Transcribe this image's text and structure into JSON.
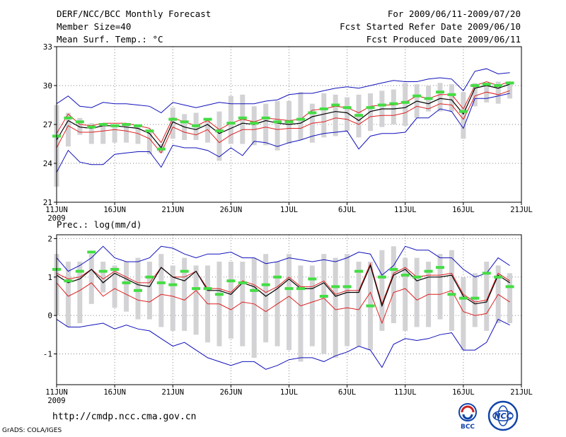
{
  "header": {
    "title": "DERF/NCC/BCC Monthly Forecast",
    "member_size": "Member Size=40",
    "variable": "Mean Surf. Temp.: °C",
    "period": "For 2009/06/11-2009/07/20",
    "start_ref": "Fcst Started Refer Date 2009/06/10",
    "produced": "Fcst Produced Date 2009/06/11"
  },
  "footer": {
    "url": "http://cmdp.ncc.cma.gov.cn",
    "credit": "GrADS: COLA/IGES"
  },
  "logos": {
    "bcc_text": "BCC",
    "ncc_text": "NCC"
  },
  "colors": {
    "box": "#d3d3d6",
    "mean": "#000000",
    "band": "#dd2020",
    "envelope": "#1010bb",
    "obs": "#44dd44",
    "grid": "#888888"
  },
  "chart_data": [
    {
      "type": "box-ensemble",
      "title": "Mean Surf. Temp.: °C",
      "xlabel": "",
      "ylabel": "",
      "ylim": [
        21,
        33
      ],
      "yticks": [
        21,
        24,
        27,
        30,
        33
      ],
      "xlim": [
        1,
        41
      ],
      "xticks": [
        {
          "x": 1,
          "label": "11JUN",
          "sub": "2009"
        },
        {
          "x": 6,
          "label": "16JUN"
        },
        {
          "x": 11,
          "label": "21JUN"
        },
        {
          "x": 16,
          "label": "26JUN"
        },
        {
          "x": 21,
          "label": "1JUL"
        },
        {
          "x": 26,
          "label": "6JUL"
        },
        {
          "x": 31,
          "label": "11JUL"
        },
        {
          "x": 36,
          "label": "16JUL"
        },
        {
          "x": 41,
          "label": "21JUL"
        }
      ],
      "days": [
        1,
        2,
        3,
        4,
        5,
        6,
        7,
        8,
        9,
        10,
        11,
        12,
        13,
        14,
        15,
        16,
        17,
        18,
        19,
        20,
        21,
        22,
        23,
        24,
        25,
        26,
        27,
        28,
        29,
        30,
        31,
        32,
        33,
        34,
        35,
        36,
        37,
        38,
        39,
        40
      ],
      "box_low": [
        22.2,
        25.3,
        26.2,
        25.5,
        25.5,
        25.6,
        25.6,
        25.5,
        24.7,
        24.8,
        25.9,
        25.8,
        25.8,
        25.6,
        24.2,
        25.5,
        25.5,
        25.4,
        25.4,
        25.0,
        25.5,
        25.8,
        25.6,
        26.0,
        26.1,
        26.5,
        26.0,
        26.5,
        26.8,
        27.0,
        26.9,
        27.5,
        28.0,
        28.0,
        28.0,
        25.9,
        28.4,
        28.7,
        28.6,
        29.0
      ],
      "box_high": [
        28.5,
        27.9,
        27.5,
        27.1,
        27.0,
        27.0,
        26.9,
        26.9,
        26.6,
        25.5,
        28.3,
        27.8,
        27.9,
        27.3,
        28.0,
        29.2,
        29.3,
        28.4,
        28.6,
        28.8,
        28.8,
        29.5,
        28.6,
        29.4,
        29.3,
        29.1,
        29.3,
        29.4,
        29.6,
        29.7,
        30.2,
        30.1,
        30.0,
        30.2,
        30.1,
        29.5,
        30.2,
        30.2,
        30.3,
        30.3
      ],
      "mean": [
        25.8,
        27.3,
        26.8,
        26.7,
        26.9,
        26.9,
        26.8,
        26.7,
        26.3,
        25.2,
        27.2,
        26.8,
        26.6,
        27.0,
        26.3,
        26.7,
        27.1,
        27.0,
        27.3,
        27.1,
        27.0,
        27.1,
        27.6,
        27.8,
        28.0,
        27.9,
        27.3,
        28.0,
        28.2,
        28.2,
        28.3,
        28.8,
        28.6,
        29.0,
        28.9,
        27.8,
        29.8,
        30.0,
        29.8,
        30.1
      ],
      "band_high": [
        26.3,
        27.8,
        27.0,
        26.9,
        27.1,
        27.1,
        27.1,
        26.9,
        26.7,
        25.6,
        27.5,
        27.2,
        26.9,
        27.3,
        26.6,
        27.1,
        27.4,
        27.2,
        27.5,
        27.4,
        27.3,
        27.4,
        28.1,
        28.2,
        28.4,
        28.3,
        27.9,
        28.4,
        28.5,
        28.5,
        28.7,
        29.2,
        29.0,
        29.3,
        29.3,
        28.2,
        30.0,
        30.3,
        30.0,
        30.3
      ],
      "band_low": [
        25.2,
        26.9,
        26.4,
        26.4,
        26.5,
        26.6,
        26.5,
        26.3,
        25.9,
        24.8,
        26.8,
        26.4,
        26.2,
        26.6,
        25.6,
        26.2,
        26.6,
        26.6,
        26.8,
        26.6,
        26.7,
        26.7,
        27.1,
        27.2,
        27.5,
        27.4,
        27.0,
        27.6,
        27.7,
        27.7,
        27.9,
        28.4,
        28.2,
        28.6,
        28.5,
        27.4,
        29.2,
        29.5,
        29.3,
        29.6
      ],
      "env_high": [
        28.6,
        29.2,
        28.4,
        28.3,
        28.7,
        28.6,
        28.6,
        28.5,
        28.4,
        27.9,
        28.7,
        28.5,
        28.3,
        28.5,
        28.7,
        28.6,
        28.6,
        28.6,
        28.8,
        28.9,
        29.3,
        29.4,
        29.4,
        29.6,
        29.8,
        29.9,
        29.8,
        30.0,
        30.2,
        30.4,
        30.3,
        30.3,
        30.5,
        30.6,
        30.5,
        29.6,
        31.1,
        31.3,
        30.9,
        31.0
      ],
      "env_low": [
        23.3,
        25.0,
        24.1,
        23.9,
        23.9,
        24.7,
        24.8,
        24.9,
        24.9,
        23.7,
        25.4,
        25.2,
        25.2,
        25.0,
        24.5,
        25.2,
        24.6,
        25.7,
        25.6,
        25.3,
        25.6,
        25.8,
        26.1,
        26.3,
        26.4,
        26.5,
        25.1,
        26.1,
        26.3,
        26.3,
        26.4,
        27.5,
        27.5,
        28.2,
        28.0,
        26.7,
        29.0,
        29.0,
        29.2,
        29.4
      ],
      "observed": [
        26.1,
        27.5,
        27.2,
        26.8,
        27.0,
        26.9,
        27.0,
        26.9,
        26.5,
        25.1,
        27.4,
        27.2,
        26.9,
        27.4,
        26.5,
        27.1,
        27.5,
        27.1,
        27.5,
        27.2,
        27.2,
        27.4,
        27.9,
        28.2,
        28.5,
        28.3,
        27.7,
        28.3,
        28.5,
        28.6,
        28.7,
        29.2,
        29.0,
        29.5,
        29.3,
        28.0,
        30.0,
        30.1,
        30.0,
        30.2
      ]
    },
    {
      "type": "box-ensemble",
      "title": "Prec.: log(mm/d)",
      "xlabel": "",
      "ylabel": "",
      "ylim": [
        -1.8,
        2.1
      ],
      "yticks": [
        -1,
        0,
        1,
        2
      ],
      "xlim": [
        1,
        41
      ],
      "xticks": [
        {
          "x": 1,
          "label": "11JUN",
          "sub": "2009"
        },
        {
          "x": 6,
          "label": "16JUN"
        },
        {
          "x": 11,
          "label": "21JUN"
        },
        {
          "x": 16,
          "label": "26JUN"
        },
        {
          "x": 21,
          "label": "1JUL"
        },
        {
          "x": 26,
          "label": "6JUL"
        },
        {
          "x": 31,
          "label": "11JUL"
        },
        {
          "x": 36,
          "label": "16JUL"
        },
        {
          "x": 41,
          "label": "21JUL"
        }
      ],
      "days": [
        1,
        2,
        3,
        4,
        5,
        6,
        7,
        8,
        9,
        10,
        11,
        12,
        13,
        14,
        15,
        16,
        17,
        18,
        19,
        20,
        21,
        22,
        23,
        24,
        25,
        26,
        27,
        28,
        29,
        30,
        31,
        32,
        33,
        34,
        35,
        36,
        37,
        38,
        39,
        40
      ],
      "box_low": [
        0.0,
        -0.3,
        -0.2,
        0.3,
        0.6,
        0.2,
        0.1,
        -0.1,
        -0.1,
        -0.3,
        -0.4,
        -0.4,
        -0.5,
        -0.7,
        -0.8,
        -0.6,
        -0.8,
        -1.1,
        -0.7,
        -0.8,
        -0.9,
        -1.2,
        -0.8,
        -1.0,
        -1.1,
        -0.8,
        -0.8,
        -0.9,
        -0.4,
        -0.2,
        -0.4,
        -0.3,
        -0.3,
        -0.1,
        -0.4,
        -0.9,
        -0.3,
        -0.4,
        -0.2,
        -0.2
      ],
      "box_high": [
        1.6,
        1.4,
        1.4,
        1.6,
        1.4,
        1.3,
        1.4,
        1.5,
        1.4,
        1.6,
        1.3,
        1.5,
        1.3,
        1.3,
        1.4,
        1.4,
        1.4,
        1.5,
        1.6,
        1.4,
        1.6,
        1.3,
        1.3,
        1.6,
        1.5,
        1.6,
        1.4,
        1.4,
        1.7,
        1.8,
        1.5,
        1.5,
        1.4,
        1.6,
        1.7,
        1.0,
        1.1,
        1.4,
        1.3,
        1.1
      ],
      "mean": [
        1.05,
        0.85,
        0.95,
        1.2,
        0.85,
        1.1,
        0.95,
        0.8,
        0.75,
        1.25,
        1.0,
        0.9,
        1.15,
        0.65,
        0.65,
        0.55,
        0.85,
        0.75,
        0.5,
        0.7,
        0.95,
        0.7,
        0.7,
        0.85,
        0.5,
        0.6,
        0.6,
        1.3,
        0.25,
        1.05,
        1.2,
        0.9,
        1.0,
        1.0,
        1.05,
        0.5,
        0.3,
        0.35,
        1.05,
        0.85
      ],
      "band_high": [
        1.1,
        0.95,
        1.0,
        1.2,
        0.95,
        1.15,
        1.0,
        0.85,
        0.85,
        1.25,
        1.0,
        1.0,
        1.15,
        0.7,
        0.7,
        0.6,
        0.9,
        0.8,
        0.6,
        0.75,
        1.0,
        0.75,
        0.75,
        0.9,
        0.55,
        0.65,
        0.65,
        1.35,
        0.3,
        1.1,
        1.25,
        1.0,
        1.05,
        1.05,
        1.1,
        0.55,
        0.35,
        0.4,
        1.1,
        0.9
      ],
      "band_low": [
        0.85,
        0.5,
        0.65,
        0.85,
        0.5,
        0.7,
        0.55,
        0.4,
        0.35,
        0.55,
        0.5,
        0.4,
        0.65,
        0.3,
        0.3,
        0.15,
        0.35,
        0.3,
        0.1,
        0.3,
        0.5,
        0.25,
        0.35,
        0.45,
        0.15,
        0.2,
        0.15,
        0.6,
        -0.2,
        0.6,
        0.7,
        0.4,
        0.55,
        0.55,
        0.65,
        0.1,
        0.0,
        0.05,
        0.55,
        0.35
      ],
      "env_high": [
        1.5,
        1.15,
        1.3,
        1.5,
        1.8,
        1.5,
        1.4,
        1.4,
        1.5,
        1.8,
        1.75,
        1.6,
        1.5,
        1.6,
        1.6,
        1.65,
        1.5,
        1.5,
        1.35,
        1.4,
        1.5,
        1.45,
        1.4,
        1.45,
        1.4,
        1.5,
        1.65,
        1.6,
        1.05,
        1.3,
        1.8,
        1.7,
        1.7,
        1.5,
        1.5,
        1.2,
        1.0,
        1.1,
        1.5,
        1.3
      ],
      "env_low": [
        -0.1,
        -0.3,
        -0.3,
        -0.25,
        -0.2,
        -0.35,
        -0.25,
        -0.35,
        -0.4,
        -0.6,
        -0.8,
        -0.7,
        -0.9,
        -1.1,
        -1.2,
        -1.3,
        -1.2,
        -1.2,
        -1.4,
        -1.3,
        -1.15,
        -1.1,
        -1.1,
        -1.2,
        -1.05,
        -0.95,
        -0.8,
        -0.9,
        -1.35,
        -0.75,
        -0.6,
        -0.65,
        -0.6,
        -0.5,
        -0.45,
        -0.9,
        -0.9,
        -0.7,
        -0.1,
        -0.25
      ],
      "observed": [
        1.2,
        0.9,
        1.15,
        1.65,
        1.15,
        1.2,
        0.85,
        0.65,
        1.0,
        0.85,
        0.8,
        1.15,
        0.7,
        0.7,
        0.55,
        0.9,
        0.85,
        0.65,
        0.8,
        1.0,
        0.7,
        0.7,
        0.95,
        0.5,
        0.75,
        0.75,
        1.15,
        0.25,
        1.0,
        1.2,
        1.05,
        1.0,
        1.15,
        1.25,
        0.55,
        0.45,
        0.45,
        1.1,
        1.0,
        0.75
      ]
    }
  ]
}
